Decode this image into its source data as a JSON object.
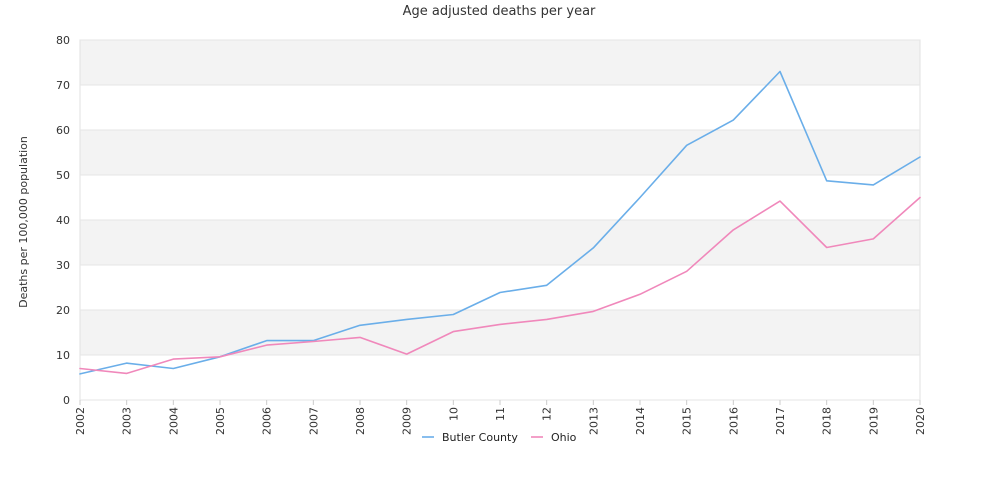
{
  "chart_data": {
    "type": "line",
    "title": "Age adjusted deaths per year",
    "xlabel": "",
    "ylabel": "Deaths per 100,000 population",
    "categories": [
      "2002",
      "2003",
      "2004",
      "2005",
      "2006",
      "2007",
      "2008",
      "2009",
      "10",
      "11",
      "12",
      "2013",
      "2014",
      "2015",
      "2016",
      "2017",
      "2018",
      "2019",
      "2020"
    ],
    "ylim": [
      0,
      80
    ],
    "yticks": [
      0,
      10,
      20,
      30,
      40,
      50,
      60,
      70,
      80
    ],
    "grid": "alternating horizontal bands",
    "legend_position": "bottom-center",
    "series": [
      {
        "name": "Butler County",
        "color": "#6aaee9",
        "values": [
          5.8,
          8.2,
          7.0,
          9.6,
          13.2,
          13.2,
          16.6,
          17.9,
          19.0,
          23.9,
          25.5,
          33.8,
          45.0,
          56.6,
          62.2,
          73.0,
          48.7,
          47.8,
          54.0
        ]
      },
      {
        "name": "Ohio",
        "color": "#f088bb",
        "values": [
          7.0,
          5.9,
          9.1,
          9.6,
          12.2,
          13.0,
          13.9,
          10.2,
          15.2,
          16.8,
          17.9,
          19.7,
          23.5,
          28.6,
          37.8,
          44.2,
          33.9,
          35.8,
          45.0
        ]
      }
    ]
  }
}
